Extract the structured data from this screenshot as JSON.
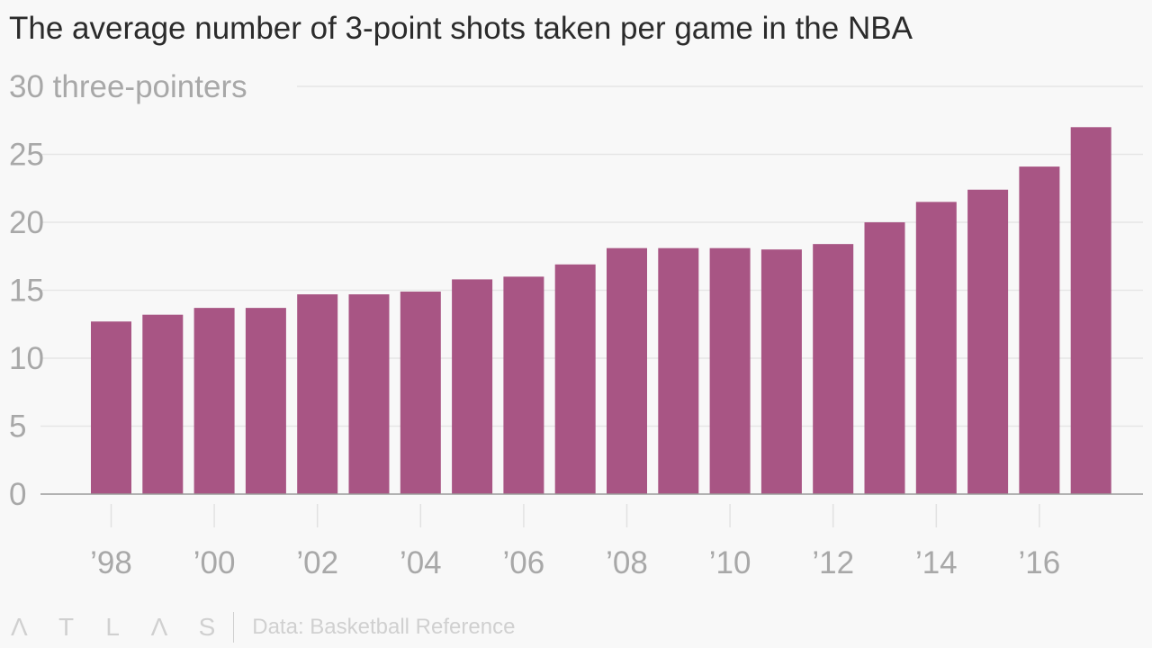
{
  "title": "The average number of 3-point shots taken per game in the NBA",
  "footer": {
    "logo": "ATLAS",
    "source": "Data: Basketball Reference"
  },
  "chart_data": {
    "type": "bar",
    "title": "The average number of 3-point shots taken per game in the NBA",
    "ylabel": "three-pointers",
    "ylim": [
      0,
      30
    ],
    "yticks": [
      0,
      5,
      10,
      15,
      20,
      25,
      30
    ],
    "ytick_labels": [
      "0",
      "5",
      "10",
      "15",
      "20",
      "25",
      "30 three-pointers"
    ],
    "categories": [
      "1998",
      "1999",
      "2000",
      "2001",
      "2002",
      "2003",
      "2004",
      "2005",
      "2006",
      "2007",
      "2008",
      "2009",
      "2010",
      "2011",
      "2012",
      "2013",
      "2014",
      "2015",
      "2016",
      "2017"
    ],
    "values": [
      12.7,
      13.2,
      13.7,
      13.7,
      14.7,
      14.7,
      14.9,
      15.8,
      16.0,
      16.9,
      18.1,
      18.1,
      18.1,
      18.0,
      18.4,
      20.0,
      21.5,
      22.4,
      24.1,
      27.0
    ],
    "xtick_labels": [
      "’98",
      "’00",
      "’02",
      "’04",
      "’06",
      "’08",
      "’10",
      "’12",
      "’14",
      "’16"
    ],
    "xtick_indices": [
      0,
      2,
      4,
      6,
      8,
      10,
      12,
      14,
      16,
      18
    ],
    "color": "#a85584",
    "grid": true
  }
}
